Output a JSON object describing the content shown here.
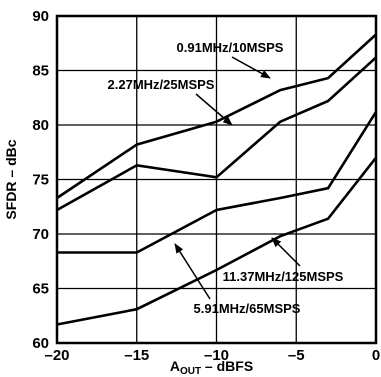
{
  "chart_data": {
    "type": "line",
    "xlabel": "A_OUT – dBFS",
    "xlabel_main": "A",
    "xlabel_sub": "OUT",
    "xlabel_rest": " – dBFS",
    "ylabel": "SFDR – dBc",
    "xlim": [
      -20,
      0
    ],
    "ylim": [
      60,
      90
    ],
    "grid": true,
    "x_ticks": [
      -20,
      -15,
      -10,
      -5,
      0
    ],
    "x_tick_labels": [
      "–20",
      "–15",
      "–10",
      "–5",
      "0"
    ],
    "y_ticks": [
      60,
      65,
      70,
      75,
      80,
      85,
      90
    ],
    "y_tick_labels": [
      "60",
      "65",
      "70",
      "75",
      "80",
      "85",
      "90"
    ],
    "series": [
      {
        "name": "0.91MHz/10MSPS",
        "x": [
          -20,
          -15,
          -10,
          -6,
          -3,
          0
        ],
        "y": [
          73.3,
          78.2,
          80.3,
          83.2,
          84.3,
          88.3
        ]
      },
      {
        "name": "2.27MHz/25MSPS",
        "x": [
          -20,
          -15,
          -10,
          -6,
          -3,
          0
        ],
        "y": [
          72.2,
          76.3,
          75.2,
          80.3,
          82.2,
          86.2
        ]
      },
      {
        "name": "5.91MHz/65MSPS",
        "x": [
          -20,
          -15,
          -10,
          -6,
          -3,
          0
        ],
        "y": [
          68.3,
          68.3,
          72.2,
          73.3,
          74.2,
          81.2
        ]
      },
      {
        "name": "11.37MHz/125MSPS",
        "x": [
          -20,
          -15,
          -10,
          -6,
          -3,
          0
        ],
        "y": [
          61.7,
          63.1,
          66.7,
          69.8,
          71.4,
          77.0
        ]
      }
    ]
  }
}
